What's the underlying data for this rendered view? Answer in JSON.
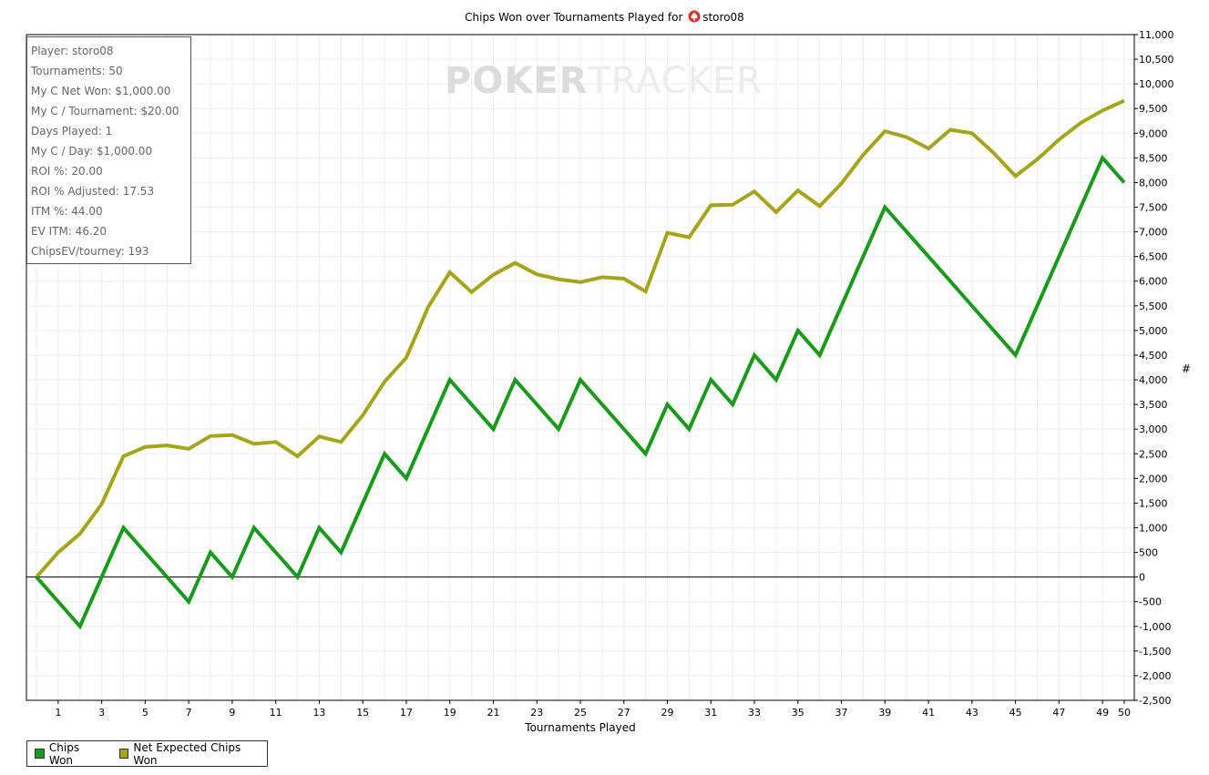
{
  "title": "Chips Won over Tournaments Played for",
  "player": "storo08",
  "watermark": {
    "bold": "POKER",
    "light": "TRACKER"
  },
  "stats": [
    "Player: storo08",
    "Tournaments: 50",
    "My C Net Won: $1,000.00",
    "My C / Tournament: $20.00",
    "Days Played: 1",
    "My C / Day: $1,000.00",
    "ROI %: 20.00",
    "ROI % Adjusted: 17.53",
    "ITM %: 44.00",
    "EV ITM: 46.20",
    "ChipsEV/tourney: 193"
  ],
  "colors": {
    "chips_won": "#1a9a1a",
    "net_expected": "#a3a51a",
    "grid": "#eeeeee",
    "zero_line": "#000000"
  },
  "chart_data": {
    "type": "line",
    "xlabel": "Tournaments Played",
    "ylabel": "#",
    "xlim": [
      0,
      50
    ],
    "ylim": [
      -2500,
      11000
    ],
    "x_ticks": [
      "1",
      "3",
      "5",
      "7",
      "9",
      "11",
      "13",
      "15",
      "17",
      "19",
      "21",
      "23",
      "25",
      "27",
      "29",
      "31",
      "33",
      "35",
      "37",
      "39",
      "41",
      "43",
      "45",
      "47",
      "49",
      "50"
    ],
    "y_ticks": [
      "11,000",
      "10,500",
      "10,000",
      "9,500",
      "9,000",
      "8,500",
      "8,000",
      "7,500",
      "7,000",
      "6,500",
      "6,000",
      "5,500",
      "5,000",
      "4,500",
      "4,000",
      "3,500",
      "3,000",
      "2,500",
      "2,000",
      "1,500",
      "1,000",
      "500",
      "0",
      "-500",
      "-1,000",
      "-1,500",
      "-2,000",
      "-2,500"
    ],
    "grid": true,
    "legend_position": "bottom-left",
    "x": [
      0,
      1,
      2,
      3,
      4,
      5,
      6,
      7,
      8,
      9,
      10,
      11,
      12,
      13,
      14,
      15,
      16,
      17,
      18,
      19,
      20,
      21,
      22,
      23,
      24,
      25,
      26,
      27,
      28,
      29,
      30,
      31,
      32,
      33,
      34,
      35,
      36,
      37,
      38,
      39,
      40,
      41,
      42,
      43,
      44,
      45,
      46,
      47,
      48,
      49,
      50
    ],
    "series": [
      {
        "name": "Chips Won",
        "values": [
          0,
          -500,
          -1000,
          0,
          1000,
          500,
          0,
          -500,
          500,
          0,
          1000,
          500,
          0,
          1000,
          500,
          1500,
          2500,
          2000,
          3000,
          4000,
          3500,
          3000,
          4000,
          3500,
          3000,
          4000,
          3500,
          3000,
          2500,
          3500,
          3000,
          4000,
          3500,
          4500,
          4000,
          5000,
          4500,
          5500,
          6500,
          7500,
          7000,
          6500,
          6000,
          5500,
          5000,
          4500,
          5500,
          6500,
          7500,
          8500,
          8000
        ]
      },
      {
        "name": "Net Expected Chips Won",
        "values": [
          0,
          500,
          880,
          1480,
          2450,
          2640,
          2670,
          2600,
          2860,
          2880,
          2700,
          2740,
          2450,
          2850,
          2740,
          3280,
          3960,
          4450,
          5470,
          6180,
          5780,
          6130,
          6370,
          6140,
          6040,
          5980,
          6080,
          6050,
          5790,
          6980,
          6890,
          7540,
          7550,
          7820,
          7400,
          7840,
          7520,
          7980,
          8560,
          9040,
          8920,
          8690,
          9070,
          9000,
          8600,
          8130,
          8470,
          8870,
          9210,
          9460,
          9660
        ]
      }
    ]
  },
  "legend": [
    {
      "label": "Chips Won",
      "color": "#1a9a1a"
    },
    {
      "label": "Net Expected Chips Won",
      "color": "#a3a51a"
    }
  ]
}
